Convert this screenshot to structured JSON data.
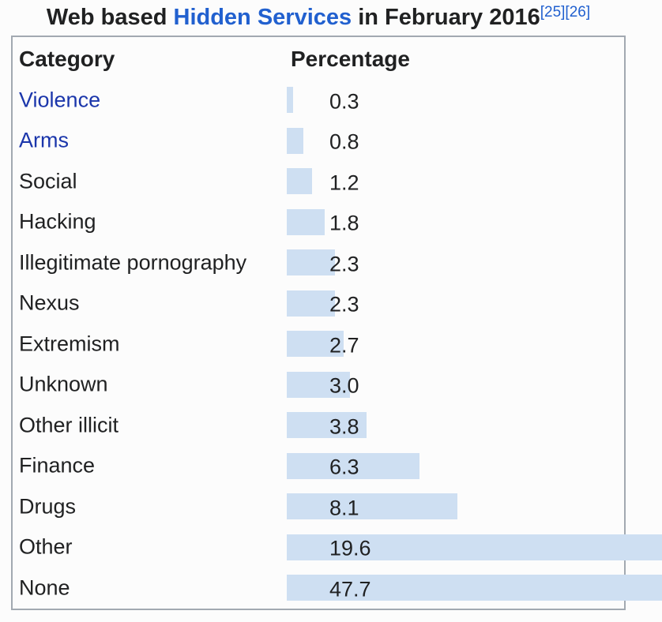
{
  "title": {
    "prefix": "Web based ",
    "link": "Hidden Services",
    "suffix": " in February 2016",
    "refs": [
      "[25]",
      "[26]"
    ]
  },
  "table": {
    "headers": {
      "category": "Category",
      "percentage": "Percentage"
    }
  },
  "chart_data": {
    "type": "bar",
    "orientation": "horizontal",
    "title": "Web based Hidden Services in February 2016",
    "xlabel": "Percentage",
    "ylabel": "Category",
    "unit": "percent",
    "xlim": [
      0,
      50
    ],
    "grid": false,
    "categories": [
      "Violence",
      "Arms",
      "Social",
      "Hacking",
      "Illegitimate pornography",
      "Nexus",
      "Extremism",
      "Unknown",
      "Other illicit",
      "Finance",
      "Drugs",
      "Other",
      "None"
    ],
    "values": [
      0.3,
      0.8,
      1.2,
      1.8,
      2.3,
      2.3,
      2.7,
      3.0,
      3.8,
      6.3,
      8.1,
      19.6,
      47.7
    ],
    "value_labels": [
      "0.3",
      "0.8",
      "1.2",
      "1.8",
      "2.3",
      "2.3",
      "2.7",
      "3.0",
      "3.8",
      "6.3",
      "8.1",
      "19.6",
      "47.7"
    ],
    "linked_categories": [
      "Violence",
      "Arms"
    ]
  },
  "colors": {
    "bar_fill": "#cedff2",
    "table_border": "#a2a9b1",
    "text": "#202122",
    "title_link": "#2160cf",
    "category_link": "#1b36ab",
    "background": "#fcfcfc"
  }
}
